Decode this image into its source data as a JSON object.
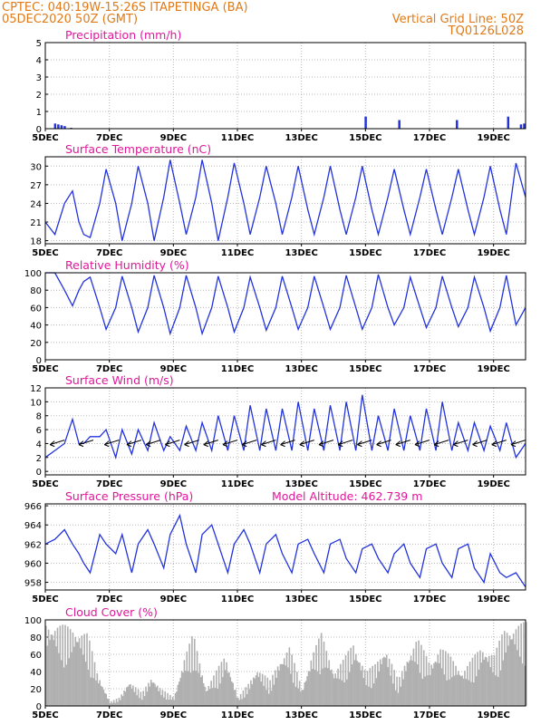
{
  "header": {
    "left_line1": "CPTEC:   040:19W-15:26S   ITAPETINGA (BA)",
    "left_line2": "05DEC2020 50Z (GMT)",
    "right_line1": "Vertical Grid Line: 50Z",
    "right_line2": "TQ0126L028"
  },
  "colors": {
    "line": "#2233dd",
    "cloud": "#b0b0b0",
    "title": "#e0179a",
    "header": "#e07a18",
    "grid": "#b8b8b8"
  },
  "x_axis": {
    "ticks": [
      "5DEC",
      "7DEC",
      "9DEC",
      "11DEC",
      "13DEC",
      "15DEC",
      "17DEC",
      "19DEC"
    ],
    "range_days": [
      5,
      20
    ]
  },
  "chart_data": [
    {
      "id": "precip",
      "type": "bar",
      "title": "Precipitation (mm/h)",
      "ylim": [
        0,
        5
      ],
      "yticks": [
        "0",
        "1",
        "2",
        "3",
        "4",
        "5"
      ],
      "x": [
        5.3,
        5.4,
        5.5,
        5.6,
        5.8,
        15.0,
        16.05,
        17.85,
        19.45,
        19.85,
        19.95
      ],
      "values": [
        0.3,
        0.25,
        0.2,
        0.15,
        0.05,
        0.7,
        0.5,
        0.5,
        0.7,
        0.25,
        0.3
      ]
    },
    {
      "id": "temp",
      "type": "line",
      "title": "Surface Temperature (nC)",
      "ylim": [
        17.5,
        31.5
      ],
      "yticks": [
        "18",
        "21",
        "24",
        "27",
        "30"
      ],
      "x": [
        5.0,
        5.3,
        5.6,
        5.85,
        6.05,
        6.2,
        6.4,
        6.7,
        6.9,
        7.2,
        7.4,
        7.7,
        7.9,
        8.2,
        8.4,
        8.7,
        8.9,
        9.2,
        9.4,
        9.7,
        9.9,
        10.2,
        10.4,
        10.7,
        10.9,
        11.2,
        11.4,
        11.7,
        11.9,
        12.2,
        12.4,
        12.7,
        12.9,
        13.2,
        13.4,
        13.7,
        13.9,
        14.2,
        14.4,
        14.7,
        14.9,
        15.2,
        15.4,
        15.7,
        15.9,
        16.2,
        16.4,
        16.7,
        16.9,
        17.2,
        17.4,
        17.7,
        17.9,
        18.2,
        18.4,
        18.7,
        18.9,
        19.2,
        19.4,
        19.7,
        20.0
      ],
      "values": [
        21,
        19,
        24,
        26,
        21,
        19,
        18.5,
        24,
        29.5,
        24,
        18,
        24,
        30,
        24,
        18,
        25,
        31,
        24,
        19,
        25,
        31,
        24,
        18,
        25,
        30.5,
        24,
        19,
        25,
        30,
        24,
        19,
        25,
        30,
        23,
        19,
        25,
        30,
        23,
        19,
        25,
        30,
        23,
        19,
        25,
        29.5,
        23,
        19,
        25,
        29.5,
        23,
        19,
        25,
        29.5,
        23,
        19,
        25,
        30,
        23,
        19,
        30.5,
        25
      ]
    },
    {
      "id": "rh",
      "type": "line",
      "title": "Relative Humidity (%)",
      "ylim": [
        0,
        100
      ],
      "yticks": [
        "0",
        "20",
        "40",
        "60",
        "80",
        "100"
      ],
      "x": [
        5.0,
        5.3,
        5.6,
        5.85,
        6.05,
        6.2,
        6.4,
        6.7,
        6.9,
        7.2,
        7.4,
        7.7,
        7.9,
        8.2,
        8.4,
        8.7,
        8.9,
        9.2,
        9.4,
        9.7,
        9.9,
        10.2,
        10.4,
        10.7,
        10.9,
        11.2,
        11.4,
        11.7,
        11.9,
        12.2,
        12.4,
        12.7,
        12.9,
        13.2,
        13.4,
        13.7,
        13.9,
        14.2,
        14.4,
        14.7,
        14.9,
        15.2,
        15.4,
        15.7,
        15.9,
        16.2,
        16.4,
        16.7,
        16.9,
        17.2,
        17.4,
        17.7,
        17.9,
        18.2,
        18.4,
        18.7,
        18.9,
        19.2,
        19.4,
        19.7,
        20.0
      ],
      "values": [
        100,
        100,
        80,
        62,
        80,
        90,
        95,
        60,
        35,
        60,
        96,
        60,
        32,
        60,
        97,
        60,
        30,
        60,
        97,
        60,
        30,
        60,
        96,
        60,
        32,
        60,
        95,
        60,
        34,
        60,
        96,
        60,
        35,
        60,
        96,
        60,
        35,
        60,
        97,
        60,
        35,
        60,
        98,
        60,
        40,
        60,
        95,
        60,
        37,
        60,
        96,
        60,
        38,
        60,
        95,
        60,
        33,
        60,
        97,
        40,
        60
      ]
    },
    {
      "id": "wind",
      "type": "line",
      "title": "Surface Wind (m/s)",
      "ylim": [
        -0.5,
        12
      ],
      "yticks": [
        "0",
        "2",
        "4",
        "6",
        "8",
        "10",
        "12"
      ],
      "x": [
        5.0,
        5.3,
        5.6,
        5.85,
        6.05,
        6.2,
        6.4,
        6.7,
        6.9,
        7.2,
        7.4,
        7.7,
        7.9,
        8.2,
        8.4,
        8.7,
        8.9,
        9.2,
        9.4,
        9.7,
        9.9,
        10.2,
        10.4,
        10.7,
        10.9,
        11.2,
        11.4,
        11.7,
        11.9,
        12.2,
        12.4,
        12.7,
        12.9,
        13.2,
        13.4,
        13.7,
        13.9,
        14.2,
        14.4,
        14.7,
        14.9,
        15.2,
        15.4,
        15.7,
        15.9,
        16.2,
        16.4,
        16.7,
        16.9,
        17.2,
        17.4,
        17.7,
        17.9,
        18.2,
        18.4,
        18.7,
        18.9,
        19.2,
        19.4,
        19.7,
        20.0
      ],
      "values": [
        2,
        3,
        4,
        7.5,
        4,
        4,
        5,
        5,
        6,
        2,
        6,
        2.5,
        6,
        3,
        7,
        3,
        5,
        3,
        6.5,
        3,
        7,
        3,
        8,
        3,
        8,
        3,
        9.5,
        3,
        9,
        3,
        9,
        3,
        10,
        3,
        9,
        3,
        9.5,
        3,
        10,
        3,
        11,
        3,
        8,
        3,
        9,
        3,
        8,
        3,
        9,
        3,
        10,
        3,
        7,
        3,
        7,
        3,
        6.5,
        3,
        7,
        2,
        4
      ],
      "arrows_x": [
        5.6,
        6.5,
        7.3,
        8.0,
        8.6,
        9.2,
        9.8,
        10.4,
        11.0,
        11.6,
        12.2,
        12.8,
        13.4,
        14.0,
        14.6,
        15.2,
        15.8,
        16.4,
        17.0,
        17.6,
        18.2,
        18.8,
        19.4,
        20.0
      ],
      "arrows_y": [
        4.5,
        4.5,
        4.5,
        4.5,
        4.5,
        4.5,
        4.5,
        4.5,
        4.5,
        4.5,
        4.5,
        4.5,
        4.5,
        4.5,
        4.5,
        4.5,
        4.5,
        4.5,
        4.5,
        4.5,
        4.5,
        4.5,
        4.5,
        4.5
      ]
    },
    {
      "id": "pres",
      "type": "line",
      "title": "Surface Pressure (hPa)",
      "subtitle": "Model Altitude: 462.739 m",
      "ylim": [
        957.2,
        966.2
      ],
      "yticks": [
        "958",
        "960",
        "962",
        "964",
        "966"
      ],
      "x": [
        5.0,
        5.3,
        5.6,
        5.85,
        6.05,
        6.2,
        6.4,
        6.7,
        6.9,
        7.2,
        7.4,
        7.7,
        7.9,
        8.2,
        8.4,
        8.7,
        8.9,
        9.2,
        9.4,
        9.7,
        9.9,
        10.2,
        10.4,
        10.7,
        10.9,
        11.2,
        11.4,
        11.7,
        11.9,
        12.2,
        12.4,
        12.7,
        12.9,
        13.2,
        13.4,
        13.7,
        13.9,
        14.2,
        14.4,
        14.7,
        14.9,
        15.2,
        15.4,
        15.7,
        15.9,
        16.2,
        16.4,
        16.7,
        16.9,
        17.2,
        17.4,
        17.7,
        17.9,
        18.2,
        18.4,
        18.7,
        18.9,
        19.2,
        19.4,
        19.7,
        20.0
      ],
      "values": [
        962,
        962.5,
        963.5,
        962,
        961,
        960,
        959,
        963,
        962,
        961,
        963,
        959,
        962,
        963.5,
        962,
        959.5,
        963,
        965,
        962,
        959,
        963,
        964,
        962,
        959,
        962,
        963.5,
        962,
        959,
        962,
        963,
        961,
        959,
        962,
        962.5,
        961,
        959,
        962,
        962.5,
        960.5,
        959,
        961.5,
        962,
        960.5,
        959,
        961,
        962,
        960,
        958.5,
        961.5,
        962,
        960,
        958.5,
        961.5,
        962,
        959.5,
        958,
        961,
        959,
        958.5,
        959,
        957.5
      ]
    },
    {
      "id": "cloud",
      "type": "area",
      "title": "Cloud Cover (%)",
      "ylim": [
        0,
        100
      ],
      "yticks": [
        "0",
        "20",
        "40",
        "60",
        "80",
        "100"
      ],
      "x": [
        5.0,
        5.5,
        6.0,
        6.3,
        6.6,
        7.0,
        7.3,
        7.6,
        8.0,
        8.3,
        8.6,
        9.0,
        9.3,
        9.6,
        10.0,
        10.3,
        10.6,
        11.0,
        11.3,
        11.6,
        12.0,
        12.3,
        12.6,
        13.0,
        13.3,
        13.6,
        14.0,
        14.3,
        14.6,
        15.0,
        15.3,
        15.6,
        16.0,
        16.3,
        16.6,
        17.0,
        17.3,
        17.6,
        18.0,
        18.3,
        18.6,
        19.0,
        19.3,
        19.6,
        20.0
      ],
      "values": [
        98,
        95,
        90,
        85,
        40,
        5,
        10,
        30,
        15,
        35,
        20,
        10,
        55,
        85,
        20,
        40,
        60,
        10,
        25,
        45,
        30,
        55,
        70,
        20,
        60,
        85,
        40,
        55,
        75,
        40,
        50,
        70,
        30,
        60,
        80,
        50,
        70,
        60,
        40,
        55,
        70,
        60,
        90,
        95,
        98
      ]
    }
  ]
}
